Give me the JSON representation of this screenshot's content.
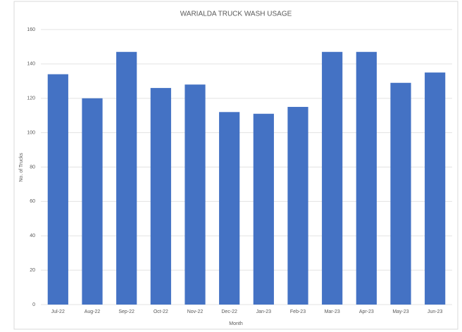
{
  "chart_data": {
    "type": "bar",
    "title": "WARIALDA TRUCK WASH USAGE",
    "x_label": "Month",
    "y_label": "No. of Trucks",
    "categories": [
      "Jul-22",
      "Aug-22",
      "Sep-22",
      "Oct-22",
      "Nov-22",
      "Dec-22",
      "Jan-23",
      "Feb-23",
      "Mar-23",
      "Apr-23",
      "May-23",
      "Jun-23"
    ],
    "values": [
      134,
      120,
      147,
      126,
      128,
      112,
      111,
      115,
      147,
      147,
      129,
      135
    ],
    "color": "#4472c4",
    "ylim": [
      0,
      160
    ],
    "yticks": [
      0,
      20,
      40,
      60,
      80,
      100,
      120,
      140,
      160
    ],
    "grid": true
  }
}
